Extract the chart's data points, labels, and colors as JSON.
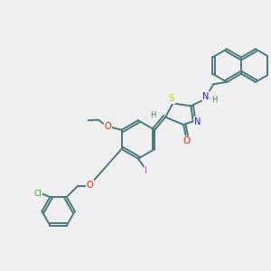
{
  "bg_color": "#efefef",
  "bond_color": "#4a7a7a",
  "bond_width": 1.4,
  "atom_colors": {
    "S": "#cccc00",
    "N": "#2222cc",
    "O": "#ee2200",
    "Cl": "#22aa22",
    "I": "#cc44cc",
    "H": "#4a7a7a",
    "C": "#4a7a7a"
  },
  "figsize": [
    3.0,
    3.0
  ],
  "dpi": 100
}
